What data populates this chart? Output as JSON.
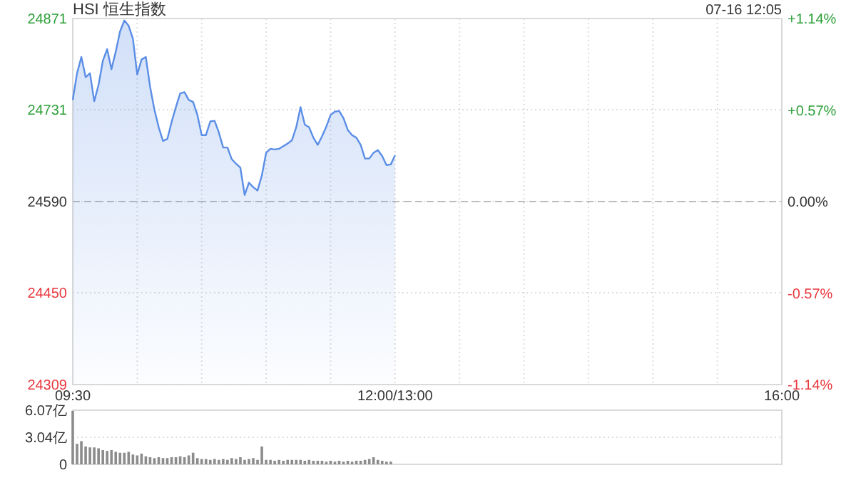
{
  "chart_data": [
    {
      "type": "area",
      "title": "HSI 恒生指数",
      "annotations": [
        "07-16 12:05"
      ],
      "categories": [
        "09:30",
        null,
        null,
        null,
        null,
        null,
        null,
        null,
        null,
        null,
        null,
        null,
        null,
        null,
        null,
        null,
        null,
        null,
        null,
        null,
        null,
        null,
        null,
        null,
        null,
        null,
        null,
        null,
        null,
        null,
        null,
        null,
        null,
        null,
        null,
        null,
        null,
        null,
        null,
        null,
        null,
        null,
        null,
        null,
        null,
        null,
        null,
        null,
        null,
        null,
        null,
        null,
        null,
        null,
        null,
        null,
        null,
        null,
        null,
        null,
        null,
        null,
        null,
        null,
        null,
        null,
        null,
        null,
        null,
        null,
        null,
        null,
        null,
        null,
        null,
        "12:00/13:00",
        null,
        null,
        null,
        null,
        null,
        null,
        null,
        null,
        null,
        null,
        null,
        null,
        null,
        null,
        null,
        null,
        null,
        null,
        null,
        null,
        null,
        null,
        null,
        null,
        null,
        null,
        null,
        null,
        null,
        null,
        null,
        null,
        null,
        null,
        null,
        null,
        null,
        null,
        null,
        null,
        null,
        null,
        null,
        null,
        null,
        null,
        null,
        null,
        null,
        null,
        null,
        null,
        null,
        null,
        null,
        null,
        null,
        null,
        null,
        null,
        null,
        null,
        null,
        null,
        null,
        null,
        null,
        null,
        null,
        null,
        null,
        null,
        null,
        null,
        null,
        null,
        null,
        null,
        null,
        null,
        null,
        null,
        null,
        null,
        null,
        null,
        null,
        null,
        null,
        "16:00"
      ],
      "series": [
        {
          "color": "#5b8ee6",
          "values": [
            24746,
            24787,
            24812,
            24781,
            24787,
            24744,
            24769,
            24806,
            24824,
            24793,
            24820,
            24851,
            24868,
            24860,
            24840,
            24785,
            24808,
            24812,
            24766,
            24731,
            24704,
            24683,
            24686,
            24712,
            24735,
            24756,
            24758,
            24746,
            24743,
            24723,
            24692,
            24692,
            24713,
            24714,
            24696,
            24673,
            24673,
            24655,
            24648,
            24642,
            24600,
            24619,
            24612,
            24607,
            24630,
            24665,
            24671,
            24670,
            24671,
            24675,
            24679,
            24684,
            24704,
            24735,
            24708,
            24704,
            24688,
            24677,
            24690,
            24705,
            24723,
            24728,
            24729,
            24718,
            24700,
            24692,
            24688,
            24677,
            24656,
            24656,
            24665,
            24669,
            24660,
            24646,
            24647,
            24661,
            null,
            null,
            null,
            null,
            null,
            null,
            null,
            null,
            null,
            null,
            null,
            null,
            null,
            null,
            null,
            null,
            null,
            null,
            null,
            null,
            null,
            null,
            null,
            null,
            null,
            null,
            null,
            null,
            null,
            null,
            null,
            null,
            null,
            null,
            null,
            null,
            null,
            null,
            null,
            null,
            null,
            null,
            null,
            null,
            null,
            null,
            null,
            null,
            null,
            null,
            null,
            null,
            null,
            null,
            null,
            null,
            null,
            null,
            null,
            null,
            null,
            null,
            null,
            null,
            null,
            null,
            null,
            null,
            null,
            null,
            null,
            null,
            null,
            null,
            null,
            null,
            null,
            null,
            null,
            null,
            null,
            null,
            null,
            null,
            null,
            null,
            null,
            null,
            null,
            null
          ]
        }
      ],
      "ylim": [
        24309,
        24871
      ],
      "yticks": [
        24309,
        24450,
        24590,
        24731,
        24871
      ],
      "y2lim": [
        -1.14,
        1.14
      ],
      "y2ticks": [
        {
          "value": -1.14,
          "label": "-1.14%"
        },
        {
          "value": -0.57,
          "label": "-0.57%"
        },
        {
          "value": 0,
          "label": "0.00%"
        },
        {
          "value": 0.57,
          "label": "+0.57%"
        },
        {
          "value": 1.14,
          "label": "+1.14%"
        }
      ],
      "ref_lines": [
        {
          "axis": "y",
          "value": 24590,
          "line_style": "dashed"
        }
      ],
      "grid": true
    },
    {
      "type": "bar",
      "color": "#8c8c8c",
      "categories": [
        null,
        null,
        null,
        null,
        null,
        null,
        null,
        null,
        null,
        null,
        null,
        null,
        null,
        null,
        null,
        null,
        null,
        null,
        null,
        null,
        null,
        null,
        null,
        null,
        null,
        null,
        null,
        null,
        null,
        null,
        null,
        null,
        null,
        null,
        null,
        null,
        null,
        null,
        null,
        null,
        null,
        null,
        null,
        null,
        null,
        null,
        null,
        null,
        null,
        null,
        null,
        null,
        null,
        null,
        null,
        null,
        null,
        null,
        null,
        null,
        null,
        null,
        null,
        null,
        null,
        null,
        null,
        null,
        null,
        null,
        null,
        null,
        null,
        null,
        null,
        null,
        null,
        null,
        null,
        null,
        null,
        null,
        null,
        null,
        null,
        null,
        null,
        null,
        null,
        null,
        null,
        null,
        null,
        null,
        null,
        null,
        null,
        null,
        null,
        null,
        null,
        null,
        null,
        null,
        null,
        null,
        null,
        null,
        null,
        null,
        null,
        null,
        null,
        null,
        null,
        null,
        null,
        null,
        null,
        null,
        null,
        null,
        null,
        null,
        null,
        null,
        null,
        null,
        null,
        null,
        null,
        null,
        null,
        null,
        null,
        null,
        null,
        null,
        null,
        null,
        null,
        null,
        null,
        null,
        null,
        null,
        null,
        null,
        null,
        null,
        null,
        null,
        null,
        null,
        null,
        null,
        null,
        null,
        null,
        null,
        null,
        null,
        null,
        null,
        null,
        null
      ],
      "values": [
        6.0,
        2.3,
        2.6,
        2.0,
        1.9,
        1.9,
        1.8,
        1.6,
        1.5,
        1.6,
        1.4,
        1.3,
        1.3,
        1.4,
        1.1,
        1.0,
        1.2,
        0.9,
        0.8,
        0.7,
        0.8,
        0.7,
        0.7,
        0.8,
        0.8,
        0.9,
        0.8,
        1.0,
        1.3,
        0.7,
        0.6,
        0.6,
        0.5,
        0.6,
        0.5,
        0.6,
        0.5,
        0.7,
        0.6,
        0.8,
        0.5,
        0.6,
        0.7,
        0.5,
        2.0,
        0.5,
        0.5,
        0.4,
        0.5,
        0.4,
        0.5,
        0.5,
        0.5,
        0.5,
        0.4,
        0.5,
        0.4,
        0.4,
        0.4,
        0.3,
        0.4,
        0.3,
        0.4,
        0.3,
        0.4,
        0.3,
        0.4,
        0.4,
        0.5,
        0.6,
        0.8,
        0.5,
        0.4,
        0.3,
        0.3,
        null,
        null,
        null,
        null,
        null,
        null,
        null,
        null,
        null,
        null,
        null,
        null,
        null,
        null,
        null,
        null,
        null,
        null,
        null,
        null,
        null,
        null,
        null,
        null,
        null,
        null,
        null,
        null,
        null,
        null,
        null,
        null,
        null,
        null,
        null,
        null,
        null,
        null,
        null,
        null,
        null,
        null,
        null,
        null,
        null,
        null,
        null,
        null,
        null,
        null,
        null,
        null,
        null,
        null,
        null,
        null,
        null,
        null,
        null,
        null,
        null,
        null,
        null,
        null,
        null,
        null,
        null,
        null,
        null,
        null,
        null,
        null,
        null,
        null,
        null,
        null,
        null,
        null,
        null,
        null,
        null,
        null,
        null,
        null,
        null,
        null,
        null,
        null,
        null,
        null,
        null
      ],
      "ylim": [
        0,
        6.07
      ],
      "yticks": [
        0,
        {
          "value": 3.04,
          "label": "3.04亿"
        },
        {
          "value": 6.07,
          "label": "6.07亿"
        }
      ],
      "grid": "y"
    }
  ]
}
